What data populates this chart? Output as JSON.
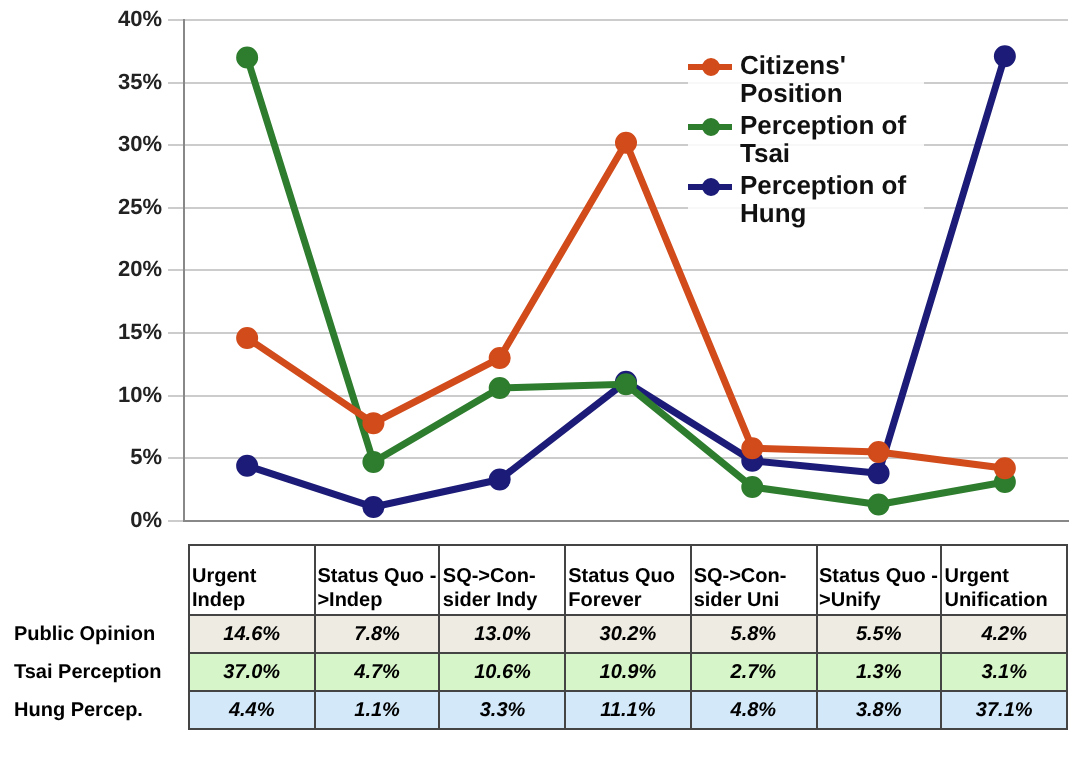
{
  "chart_data": {
    "type": "line",
    "categories": [
      "Urgent Indep",
      "Status Quo ->Indep",
      "SQ->Con-sider Indy",
      "Status Quo Forever",
      "SQ->Con-sider Uni",
      "Status Quo ->Unify",
      "Urgent Unification"
    ],
    "series": [
      {
        "name": "Citizens' Position",
        "color": "#d14b1b",
        "values": [
          14.6,
          7.8,
          13.0,
          30.2,
          5.8,
          5.5,
          4.2
        ],
        "value_labels": [
          "14.6%",
          "7.8%",
          "13.0%",
          "30.2%",
          "5.8%",
          "5.5%",
          "4.2%"
        ]
      },
      {
        "name": "Perception of Tsai",
        "color": "#2e7d2e",
        "values": [
          37.0,
          4.7,
          10.6,
          10.9,
          2.7,
          1.3,
          3.1
        ],
        "value_labels": [
          "37.0%",
          "4.7%",
          "10.6%",
          "10.9%",
          "2.7%",
          "1.3%",
          "3.1%"
        ]
      },
      {
        "name": "Perception of Hung",
        "color": "#1c1c78",
        "values": [
          4.4,
          1.1,
          3.3,
          11.1,
          4.8,
          3.8,
          37.1
        ],
        "value_labels": [
          "4.4%",
          "1.1%",
          "3.3%",
          "11.1%",
          "4.8%",
          "3.8%",
          "37.1%"
        ]
      }
    ],
    "annotations": [
      "Public Opinion",
      "Tsai Perception",
      "Hung Percep."
    ],
    "ylim": [
      0,
      40
    ],
    "yticks": [
      {
        "value": 0,
        "label": "0%"
      },
      {
        "value": 5,
        "label": "5%"
      },
      {
        "value": 10,
        "label": "10%"
      },
      {
        "value": 15,
        "label": "15%"
      },
      {
        "value": 20,
        "label": "20%"
      },
      {
        "value": 25,
        "label": "25%"
      },
      {
        "value": 30,
        "label": "30%"
      },
      {
        "value": 35,
        "label": "35%"
      },
      {
        "value": 40,
        "label": "40%"
      }
    ],
    "grid": "y",
    "legend": "top right",
    "marker": "circle",
    "line_style": "solid"
  }
}
